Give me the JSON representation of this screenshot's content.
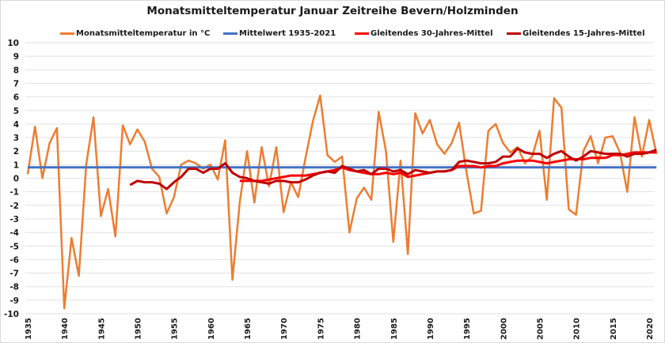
{
  "chart_data": {
    "type": "line",
    "title": "Monatsmitteltemperatur Januar Zeitreihe Bevern/Holzminden",
    "xlabel": "",
    "ylabel": "",
    "xlim": [
      1935,
      2021
    ],
    "ylim": [
      -10,
      10
    ],
    "yticks": [
      "10",
      "9",
      "8",
      "7",
      "6",
      "5",
      "4",
      "3",
      "2",
      "1",
      "0",
      "-1",
      "-2",
      "-3",
      "-4",
      "-5",
      "-6",
      "-7",
      "-8",
      "-9",
      "-10"
    ],
    "xticks": [
      "1935",
      "1940",
      "1945",
      "1950",
      "1955",
      "1960",
      "1965",
      "1970",
      "1975",
      "1980",
      "1985",
      "1990",
      "1995",
      "2000",
      "2005",
      "2010",
      "2015",
      "2020"
    ],
    "grid": true,
    "legend_position": "top",
    "series": [
      {
        "name": "Monatsmitteltemperatur in °C",
        "color": "#ed7d31",
        "start": 1935,
        "values": [
          0.3,
          3.8,
          0.0,
          2.6,
          3.7,
          -9.6,
          -4.4,
          -7.2,
          1.0,
          4.5,
          -2.8,
          -0.8,
          -4.3,
          3.9,
          2.5,
          3.6,
          2.7,
          0.7,
          0.1,
          -2.6,
          -1.4,
          1.0,
          1.3,
          1.1,
          0.7,
          1.0,
          -0.1,
          2.8,
          -7.5,
          -1.8,
          2.0,
          -1.8,
          2.3,
          -0.6,
          2.3,
          -2.5,
          -0.3,
          -1.4,
          1.5,
          4.2,
          6.1,
          1.7,
          1.2,
          1.6,
          -4.0,
          -1.5,
          -0.7,
          -1.6,
          4.9,
          2.0,
          -4.7,
          1.3,
          -5.6,
          4.8,
          3.3,
          4.3,
          2.5,
          1.8,
          2.6,
          4.1,
          0.5,
          -2.6,
          -2.4,
          3.5,
          4.0,
          2.6,
          1.9,
          2.3,
          1.1,
          1.6,
          3.5,
          -1.6,
          5.9,
          5.2,
          -2.3,
          -2.7,
          2.0,
          3.1,
          1.1,
          3.0,
          3.1,
          1.9,
          -1.0,
          4.5,
          1.6,
          4.3,
          1.8
        ]
      },
      {
        "name": "Mittelwert 1935-2021",
        "color": "#4472c4",
        "start": 1935,
        "constant": 0.8,
        "end": 2021
      },
      {
        "name": "Gleitendes 30-Jahres-Mittel",
        "color": "#ff0000",
        "start": 1964,
        "values": [
          -0.2,
          -0.2,
          -0.2,
          -0.2,
          -0.1,
          0.0,
          0.1,
          0.2,
          0.2,
          0.2,
          0.3,
          0.4,
          0.5,
          0.6,
          0.8,
          0.6,
          0.5,
          0.4,
          0.3,
          0.3,
          0.4,
          0.3,
          0.4,
          0.1,
          0.2,
          0.3,
          0.4,
          0.5,
          0.5,
          0.6,
          0.9,
          0.9,
          0.9,
          0.8,
          0.9,
          0.9,
          1.1,
          1.2,
          1.3,
          1.3,
          1.3,
          1.2,
          1.1,
          1.2,
          1.3,
          1.4,
          1.4,
          1.4,
          1.5,
          1.5,
          1.5,
          1.7,
          1.7,
          1.8,
          1.9,
          1.9,
          1.9,
          1.9
        ]
      },
      {
        "name": "Gleitendes 15-Jahres-Mittel",
        "color": "#c00000",
        "start": 1949,
        "values": [
          -0.5,
          -0.2,
          -0.3,
          -0.3,
          -0.4,
          -0.8,
          -0.3,
          0.1,
          0.7,
          0.7,
          0.4,
          0.7,
          0.7,
          1.1,
          0.4,
          0.1,
          0.0,
          -0.2,
          -0.3,
          -0.4,
          -0.2,
          -0.2,
          -0.3,
          -0.3,
          -0.1,
          0.2,
          0.4,
          0.5,
          0.4,
          0.9,
          0.7,
          0.5,
          0.6,
          0.3,
          0.7,
          0.7,
          0.5,
          0.6,
          0.3,
          0.6,
          0.5,
          0.4,
          0.5,
          0.5,
          0.6,
          1.2,
          1.3,
          1.2,
          1.1,
          1.1,
          1.2,
          1.6,
          1.6,
          2.2,
          1.9,
          1.8,
          1.8,
          1.5,
          1.8,
          2.0,
          1.6,
          1.3,
          1.6,
          2.0,
          1.9,
          1.8,
          1.8,
          1.8,
          1.6,
          1.8,
          1.8,
          1.9,
          2.1
        ]
      }
    ]
  }
}
